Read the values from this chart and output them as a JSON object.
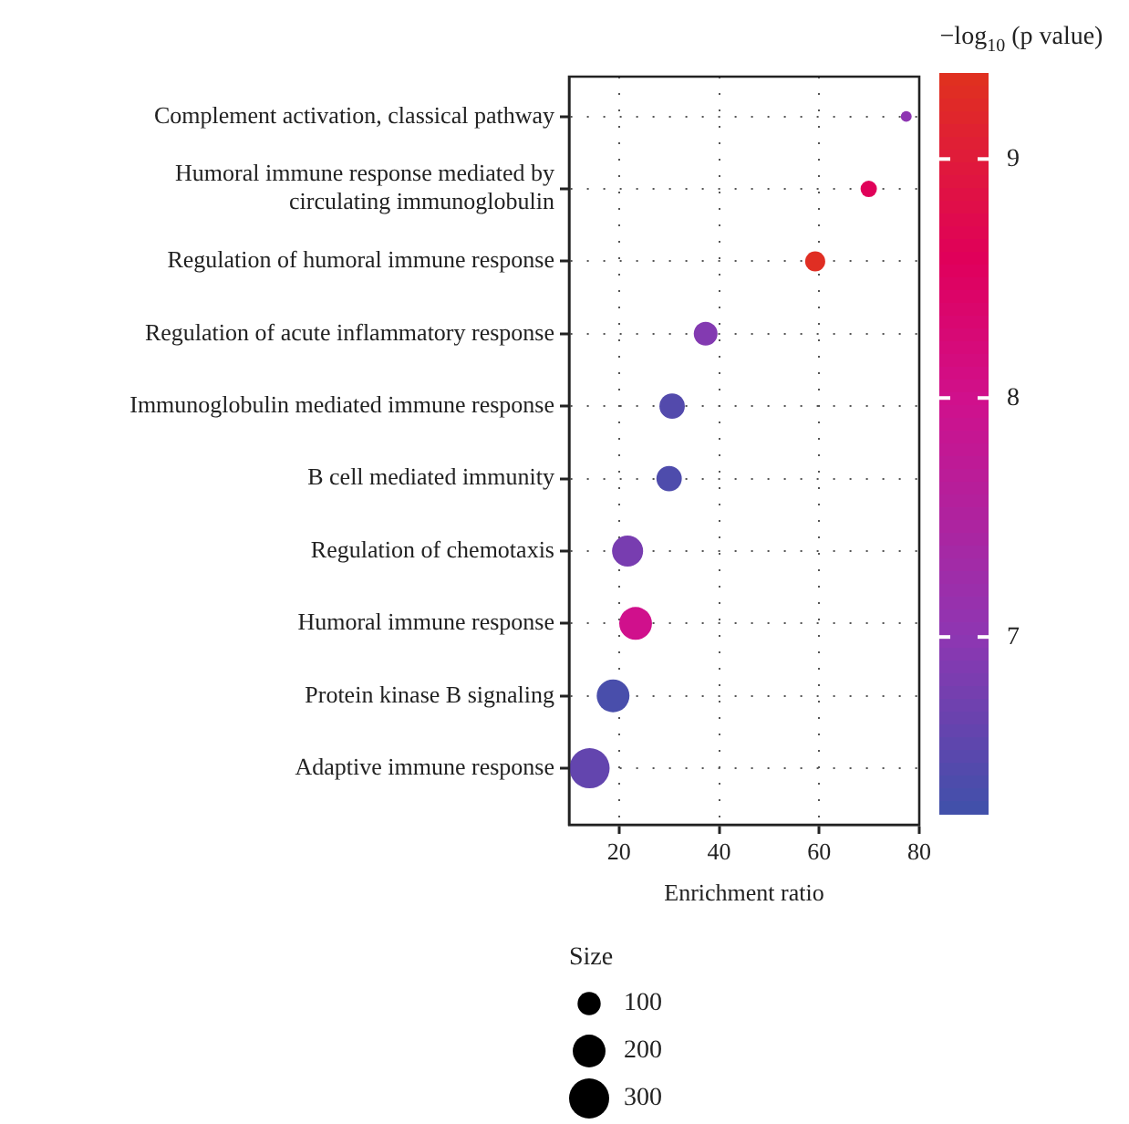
{
  "chart_data": {
    "type": "bubble",
    "categories": [
      "Complement activation, classical pathway",
      "Humoral immune response mediated by circulating immunoglobulin",
      "Regulation of humoral immune response",
      "Regulation of acute inflammatory response",
      "Immunoglobulin mediated immune response",
      "B cell mediated immunity",
      "Regulation of chemotaxis",
      "Humoral immune response",
      "Protein kinase B signaling",
      "Adaptive immune response"
    ],
    "values": [
      77.4,
      69.9,
      59.2,
      37.3,
      30.6,
      30.0,
      21.7,
      23.3,
      18.8,
      14.1
    ],
    "sizes": [
      22,
      50,
      75,
      105,
      120,
      120,
      180,
      200,
      200,
      300
    ],
    "cvalues": [
      7.0,
      8.6,
      9.3,
      6.9,
      6.45,
      6.4,
      6.8,
      8.0,
      6.35,
      6.6
    ],
    "size_legend": [
      100,
      200,
      300
    ],
    "legend_title": "Size",
    "clabel": "−log$_{10}$ (p value)",
    "clim": [
      6.26,
      9.36
    ],
    "cticks": [
      7,
      8,
      9
    ],
    "xlabel": "Enrichment ratio",
    "orientation": "horizontal",
    "xlim": [
      10,
      80
    ],
    "xticks": [
      20,
      40,
      60,
      80
    ],
    "grid": true
  }
}
